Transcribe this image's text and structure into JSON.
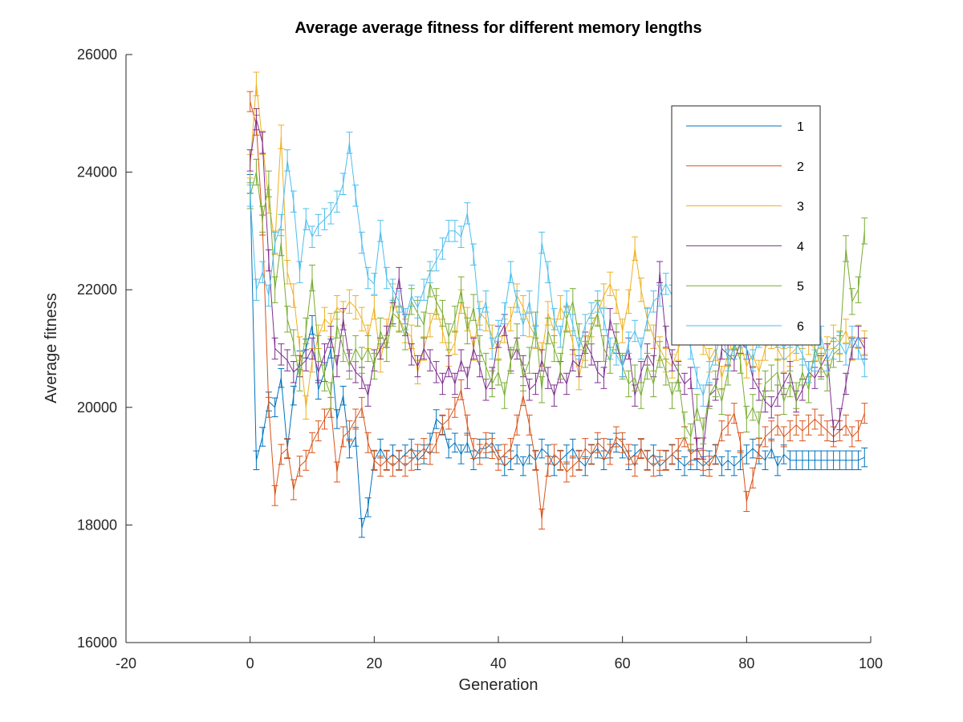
{
  "chart_data": {
    "type": "line",
    "error_bars": true,
    "title": "Average average fitness for different memory lengths",
    "xlabel": "Generation",
    "ylabel": "Average fitness",
    "xlim": [
      -20,
      100
    ],
    "ylim": [
      16000,
      26000
    ],
    "xticks": [
      "-20",
      "0",
      "20",
      "40",
      "60",
      "80",
      "100"
    ],
    "yticks": [
      "16000",
      "18000",
      "20000",
      "22000",
      "24000",
      "26000"
    ],
    "legend_position": "top-right",
    "grid": false,
    "series": [
      {
        "name": "1",
        "color": "#0072BD",
        "err": 160,
        "x": [
          0,
          1,
          2,
          3,
          4,
          5,
          6,
          7,
          8,
          9,
          10,
          11,
          12,
          13,
          14,
          15,
          16,
          17,
          18,
          19,
          20,
          21,
          22,
          23,
          24,
          25,
          26,
          27,
          28,
          29,
          30,
          31,
          32,
          33,
          34,
          35,
          36,
          37,
          38,
          39,
          40,
          41,
          42,
          43,
          44,
          45,
          46,
          47,
          48,
          49,
          50,
          51,
          52,
          53,
          54,
          55,
          56,
          57,
          58,
          59,
          60,
          61,
          62,
          63,
          64,
          65,
          66,
          67,
          68,
          69,
          70,
          71,
          72,
          73,
          74,
          75,
          76,
          77,
          78,
          79,
          80,
          81,
          82,
          83,
          84,
          85,
          86,
          87,
          88,
          89,
          90,
          91,
          92,
          93,
          94,
          95,
          96,
          97,
          98,
          99
        ],
        "y": [
          23800,
          19100,
          19500,
          20100,
          20000,
          20500,
          19300,
          20200,
          20800,
          21000,
          21400,
          20300,
          20600,
          21000,
          19800,
          20200,
          19300,
          19500,
          17950,
          18300,
          19100,
          19300,
          19100,
          19200,
          19100,
          19200,
          19300,
          19100,
          19200,
          19400,
          19800,
          19700,
          19300,
          19400,
          19200,
          19400,
          19100,
          19300,
          19300,
          19400,
          19200,
          19000,
          19100,
          19200,
          19000,
          19200,
          19100,
          19300,
          19200,
          19000,
          19100,
          19200,
          19300,
          19100,
          19000,
          19200,
          19300,
          19100,
          19300,
          19400,
          19300,
          19100,
          19200,
          19300,
          19100,
          19200,
          19000,
          19100,
          19200,
          19100,
          19000,
          19100,
          19100,
          19000,
          19100,
          19200,
          19000,
          19100,
          19000,
          19100,
          19200,
          19300,
          19200,
          19100,
          19300,
          19000,
          19200,
          19100,
          19100,
          19100,
          19100,
          19100,
          19100,
          19100,
          19100,
          19100,
          19100,
          19100,
          19100,
          19150
        ]
      },
      {
        "name": "2",
        "color": "#D95319",
        "err": 170,
        "x": [
          0,
          1,
          2,
          3,
          4,
          5,
          6,
          7,
          8,
          9,
          10,
          11,
          12,
          13,
          14,
          15,
          16,
          17,
          18,
          19,
          20,
          21,
          22,
          23,
          24,
          25,
          26,
          27,
          28,
          29,
          30,
          31,
          32,
          33,
          34,
          35,
          36,
          37,
          38,
          39,
          40,
          41,
          42,
          43,
          44,
          45,
          46,
          47,
          48,
          49,
          50,
          51,
          52,
          53,
          54,
          55,
          56,
          57,
          58,
          59,
          60,
          61,
          62,
          63,
          64,
          65,
          66,
          67,
          68,
          69,
          70,
          71,
          72,
          73,
          74,
          75,
          76,
          77,
          78,
          79,
          80,
          81,
          82,
          83,
          84,
          85,
          86,
          87,
          88,
          89,
          90,
          91,
          92,
          93,
          94,
          95,
          96,
          97,
          98,
          99
        ],
        "y": [
          25200,
          24800,
          23100,
          20000,
          18500,
          19200,
          19300,
          18600,
          19000,
          19100,
          19400,
          19600,
          19800,
          20000,
          18900,
          19500,
          19600,
          19800,
          20000,
          19400,
          19100,
          19000,
          19100,
          19000,
          19100,
          19000,
          19100,
          19200,
          19300,
          19200,
          19400,
          19700,
          19800,
          20000,
          20300,
          19700,
          19300,
          19200,
          19400,
          19300,
          19100,
          19200,
          19300,
          19700,
          20200,
          19700,
          19100,
          18100,
          19000,
          19200,
          19100,
          18900,
          19000,
          19100,
          19300,
          19200,
          19400,
          19300,
          19200,
          19500,
          19400,
          19200,
          19000,
          19300,
          19100,
          19000,
          19100,
          19100,
          19200,
          19300,
          19500,
          19200,
          19300,
          19100,
          19000,
          19200,
          19600,
          19700,
          19900,
          19400,
          18400,
          18800,
          19300,
          19500,
          19600,
          19700,
          19500,
          19600,
          19700,
          19600,
          19700,
          19800,
          19700,
          19600,
          19500,
          19600,
          19700,
          19500,
          19600,
          19900
        ]
      },
      {
        "name": "3",
        "color": "#EDB120",
        "err": 200,
        "x": [
          0,
          1,
          2,
          3,
          4,
          5,
          6,
          7,
          8,
          9,
          10,
          11,
          12,
          13,
          14,
          15,
          16,
          17,
          18,
          19,
          20,
          21,
          22,
          23,
          24,
          25,
          26,
          27,
          28,
          29,
          30,
          31,
          32,
          33,
          34,
          35,
          36,
          37,
          38,
          39,
          40,
          41,
          42,
          43,
          44,
          45,
          46,
          47,
          48,
          49,
          50,
          51,
          52,
          53,
          54,
          55,
          56,
          57,
          58,
          59,
          60,
          61,
          62,
          63,
          64,
          65,
          66,
          67,
          68,
          69,
          70,
          71,
          72,
          73,
          74,
          75,
          76,
          77,
          78,
          79,
          80,
          81,
          82,
          83,
          84,
          85,
          86,
          87,
          88,
          89,
          90,
          91,
          92,
          93,
          94,
          95,
          96,
          97,
          98,
          99
        ],
        "y": [
          24100,
          25500,
          24500,
          23500,
          22800,
          24600,
          22300,
          21900,
          21000,
          20000,
          20800,
          21200,
          21500,
          21400,
          21700,
          21600,
          21800,
          21700,
          21500,
          21200,
          21700,
          20800,
          21300,
          21900,
          21500,
          21300,
          21200,
          20600,
          21000,
          21400,
          21700,
          21300,
          20900,
          21100,
          21800,
          21500,
          21000,
          21600,
          21500,
          21200,
          21000,
          21300,
          21500,
          21900,
          21700,
          21400,
          21200,
          20900,
          21600,
          21300,
          21700,
          21500,
          21100,
          20500,
          21000,
          21400,
          21600,
          21900,
          22100,
          21800,
          21300,
          21800,
          22700,
          22000,
          21500,
          21200,
          21000,
          20800,
          20700,
          21000,
          21300,
          21500,
          21300,
          21100,
          20800,
          21000,
          20500,
          20900,
          21200,
          21100,
          20700,
          20900,
          20600,
          21000,
          21200,
          21000,
          20800,
          20900,
          21000,
          21200,
          21100,
          21000,
          20800,
          21000,
          21200,
          21100,
          21300,
          21000,
          21200,
          21100
        ]
      },
      {
        "name": "4",
        "color": "#7E2F8E",
        "err": 180,
        "x": [
          0,
          1,
          2,
          3,
          4,
          5,
          6,
          7,
          8,
          9,
          10,
          11,
          12,
          13,
          14,
          15,
          16,
          17,
          18,
          19,
          20,
          21,
          22,
          23,
          24,
          25,
          26,
          27,
          28,
          29,
          30,
          31,
          32,
          33,
          34,
          35,
          36,
          37,
          38,
          39,
          40,
          41,
          42,
          43,
          44,
          45,
          46,
          47,
          48,
          49,
          50,
          51,
          52,
          53,
          54,
          55,
          56,
          57,
          58,
          59,
          60,
          61,
          62,
          63,
          64,
          65,
          66,
          67,
          68,
          69,
          70,
          71,
          72,
          73,
          74,
          75,
          76,
          77,
          78,
          79,
          80,
          81,
          82,
          83,
          84,
          85,
          86,
          87,
          88,
          89,
          90,
          91,
          92,
          93,
          94,
          95,
          96,
          97,
          98,
          99
        ],
        "y": [
          24200,
          24900,
          24500,
          22500,
          21000,
          20900,
          20800,
          20600,
          20700,
          20800,
          21000,
          20600,
          20900,
          21200,
          20700,
          21500,
          20800,
          20600,
          20500,
          20200,
          20800,
          21000,
          21200,
          21600,
          22200,
          21400,
          20900,
          20700,
          21000,
          20800,
          20600,
          20400,
          20700,
          20400,
          20800,
          20500,
          21000,
          20700,
          20300,
          20500,
          21200,
          21400,
          20800,
          21000,
          20700,
          20300,
          20400,
          20800,
          20500,
          20200,
          20600,
          20400,
          20800,
          20700,
          21100,
          20900,
          20600,
          20500,
          21500,
          21100,
          20700,
          21000,
          20200,
          20600,
          20900,
          20700,
          22300,
          21200,
          20800,
          20600,
          20400,
          20500,
          19300,
          19300,
          20200,
          20300,
          21000,
          20900,
          20800,
          21100,
          21000,
          20500,
          20300,
          20100,
          20000,
          20200,
          20400,
          20600,
          20100,
          20300,
          20600,
          20500,
          20700,
          20900,
          19600,
          19800,
          20400,
          21000,
          21200,
          21000
        ]
      },
      {
        "name": "5",
        "color": "#77AC30",
        "err": 220,
        "x": [
          0,
          1,
          2,
          3,
          4,
          5,
          6,
          7,
          8,
          9,
          10,
          11,
          12,
          13,
          14,
          15,
          16,
          17,
          18,
          19,
          20,
          21,
          22,
          23,
          24,
          25,
          26,
          27,
          28,
          29,
          30,
          31,
          32,
          33,
          34,
          35,
          36,
          37,
          38,
          39,
          40,
          41,
          42,
          43,
          44,
          45,
          46,
          47,
          48,
          49,
          50,
          51,
          52,
          53,
          54,
          55,
          56,
          57,
          58,
          59,
          60,
          61,
          62,
          63,
          64,
          65,
          66,
          67,
          68,
          69,
          70,
          71,
          72,
          73,
          74,
          75,
          76,
          77,
          78,
          79,
          80,
          81,
          82,
          83,
          84,
          85,
          86,
          87,
          88,
          89,
          90,
          91,
          92,
          93,
          94,
          95,
          96,
          97,
          98,
          99
        ],
        "y": [
          23600,
          24000,
          23200,
          23800,
          22000,
          22800,
          21500,
          21100,
          20500,
          21300,
          22200,
          21000,
          20500,
          20200,
          21400,
          21000,
          20700,
          21000,
          20800,
          21000,
          20700,
          21300,
          21000,
          21600,
          21500,
          21200,
          21800,
          21600,
          21400,
          22100,
          21800,
          21600,
          21200,
          21500,
          22000,
          21300,
          21700,
          21000,
          20700,
          20400,
          20600,
          20200,
          20800,
          21200,
          20500,
          20800,
          21400,
          20300,
          21300,
          21000,
          20700,
          21500,
          21800,
          21200,
          20900,
          21300,
          21600,
          21000,
          20800,
          21200,
          20700,
          20400,
          20500,
          20200,
          20700,
          20400,
          20900,
          20600,
          20200,
          20500,
          19700,
          19500,
          20000,
          19600,
          20200,
          20400,
          20100,
          20600,
          21100,
          20800,
          19800,
          20000,
          19700,
          20400,
          20500,
          20600,
          20100,
          20400,
          20200,
          20600,
          20300,
          21000,
          20700,
          20500,
          20900,
          21000,
          22700,
          21800,
          22000,
          23000
        ]
      },
      {
        "name": "6",
        "color": "#4DBEEE",
        "err": 180,
        "x": [
          0,
          1,
          2,
          3,
          4,
          5,
          6,
          7,
          8,
          9,
          10,
          11,
          12,
          13,
          14,
          15,
          16,
          17,
          18,
          19,
          20,
          21,
          22,
          23,
          24,
          25,
          26,
          27,
          28,
          29,
          30,
          31,
          32,
          33,
          34,
          35,
          36,
          37,
          38,
          39,
          40,
          41,
          42,
          43,
          44,
          45,
          46,
          47,
          48,
          49,
          50,
          51,
          52,
          53,
          54,
          55,
          56,
          57,
          58,
          59,
          60,
          61,
          62,
          63,
          64,
          65,
          66,
          67,
          68,
          69,
          70,
          71,
          72,
          73,
          74,
          75,
          76,
          77,
          78,
          79,
          80,
          81,
          82,
          83,
          84,
          85,
          86,
          87,
          88,
          89,
          90,
          91,
          92,
          93,
          94,
          95,
          96,
          97,
          98,
          99
        ],
        "y": [
          23600,
          22000,
          22300,
          21900,
          22800,
          23100,
          24200,
          23500,
          22300,
          23200,
          22900,
          23100,
          23200,
          23300,
          23500,
          23800,
          24500,
          23600,
          22800,
          22200,
          22100,
          23000,
          22200,
          22000,
          21800,
          21500,
          21900,
          21700,
          22000,
          22300,
          22500,
          22700,
          23000,
          23000,
          22900,
          23300,
          22600,
          21500,
          21800,
          21000,
          21300,
          21600,
          22300,
          21800,
          21400,
          21800,
          21200,
          22800,
          22300,
          21500,
          21200,
          21800,
          21400,
          21000,
          21400,
          21600,
          21800,
          21500,
          21000,
          20900,
          20700,
          21100,
          21300,
          21000,
          21500,
          21800,
          21900,
          22100,
          21900,
          21600,
          21400,
          21000,
          20500,
          20200,
          20600,
          20900,
          21300,
          20800,
          21000,
          21200,
          21000,
          20800,
          21200,
          21400,
          21600,
          21200,
          21000,
          21200,
          21100,
          20900,
          20600,
          20800,
          21200,
          20800,
          21000,
          21100,
          20900,
          21200,
          21000,
          20700
        ]
      }
    ]
  }
}
